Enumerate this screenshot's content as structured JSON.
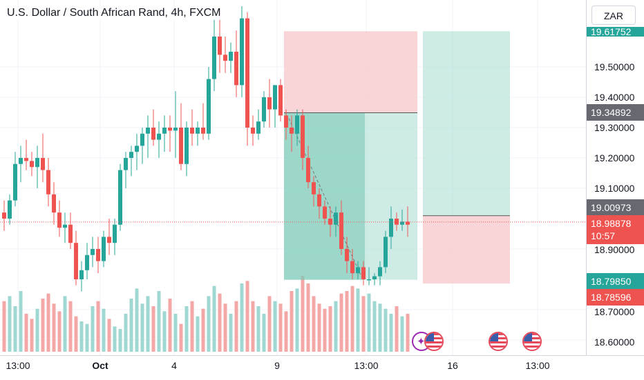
{
  "header": {
    "title": "U.S. Dollar / South African Rand, 4h, FXCM"
  },
  "currency_button": "ZAR",
  "price_axis": {
    "ticks": [
      "19.50000",
      "19.40000",
      "19.30000",
      "19.20000",
      "19.10000",
      "18.90000",
      "18.70000",
      "18.60000"
    ],
    "badges": {
      "top_partial": "19.61752",
      "entry_level": "19.34892",
      "position_level": "19.00973",
      "last_price": "18.98878",
      "countdown": "10:57",
      "green_level": "18.79850",
      "red_level": "18.78596"
    }
  },
  "time_axis": {
    "labels": [
      "13:00",
      "Oct",
      "4",
      "9",
      "13:00",
      "16",
      "13:00"
    ]
  },
  "colors": {
    "up": "#26a69a",
    "down": "#ef5350",
    "up_volume": "#9fd8d2",
    "down_volume": "#f3a7a6",
    "profit_zone": "#a6dccf",
    "loss_zone": "#f7c3c6",
    "dark_gray_badge": "#666970"
  },
  "icons": [
    "us-flag-icon",
    "us-flag-icon",
    "us-flag-icon",
    "rocket-flag-icon"
  ],
  "chart_data": {
    "type": "candlestick",
    "title": "U.S. Dollar / South African Rand, 4h, FXCM",
    "ylim": [
      18.55,
      19.75
    ],
    "y_ticks": [
      19.5,
      19.4,
      19.3,
      19.2,
      19.1,
      18.9,
      18.7,
      18.6
    ],
    "last_price": 18.98878,
    "ohlc": [
      [
        19.02,
        19.06,
        18.96,
        19.0
      ],
      [
        19.0,
        19.08,
        18.98,
        19.06
      ],
      [
        19.06,
        19.22,
        19.04,
        19.18
      ],
      [
        19.18,
        19.24,
        19.12,
        19.2
      ],
      [
        19.2,
        19.26,
        19.16,
        19.19
      ],
      [
        19.19,
        19.22,
        19.14,
        19.17
      ],
      [
        19.17,
        19.24,
        19.1,
        19.2
      ],
      [
        19.2,
        19.28,
        19.12,
        19.16
      ],
      [
        19.16,
        19.2,
        19.04,
        19.08
      ],
      [
        19.08,
        19.12,
        18.98,
        19.02
      ],
      [
        19.02,
        19.06,
        18.94,
        18.97
      ],
      [
        18.97,
        19.02,
        18.92,
        18.98
      ],
      [
        18.98,
        19.02,
        18.9,
        18.92
      ],
      [
        18.92,
        18.96,
        18.78,
        18.8
      ],
      [
        18.8,
        18.86,
        18.76,
        18.83
      ],
      [
        18.83,
        18.92,
        18.8,
        18.88
      ],
      [
        18.88,
        18.94,
        18.84,
        18.9
      ],
      [
        18.9,
        18.94,
        18.82,
        18.86
      ],
      [
        18.86,
        18.96,
        18.84,
        18.94
      ],
      [
        18.94,
        19.0,
        18.88,
        18.92
      ],
      [
        18.92,
        19.0,
        18.88,
        18.98
      ],
      [
        18.98,
        19.18,
        18.96,
        19.16
      ],
      [
        19.16,
        19.22,
        19.1,
        19.2
      ],
      [
        19.2,
        19.24,
        19.14,
        19.22
      ],
      [
        19.22,
        19.28,
        19.16,
        19.24
      ],
      [
        19.24,
        19.3,
        19.18,
        19.28
      ],
      [
        19.28,
        19.34,
        19.2,
        19.3
      ],
      [
        19.3,
        19.36,
        19.24,
        19.26
      ],
      [
        19.26,
        19.32,
        19.2,
        19.28
      ],
      [
        19.28,
        19.34,
        19.22,
        19.3
      ],
      [
        19.3,
        19.34,
        19.22,
        19.29
      ],
      [
        19.29,
        19.42,
        19.2,
        19.3
      ],
      [
        19.3,
        19.38,
        19.16,
        19.18
      ],
      [
        19.18,
        19.32,
        19.14,
        19.3
      ],
      [
        19.3,
        19.36,
        19.24,
        19.28
      ],
      [
        19.28,
        19.32,
        19.24,
        19.3
      ],
      [
        19.3,
        19.38,
        19.26,
        19.28
      ],
      [
        19.28,
        19.5,
        19.26,
        19.46
      ],
      [
        19.46,
        19.66,
        19.42,
        19.6
      ],
      [
        19.6,
        19.7,
        19.48,
        19.54
      ],
      [
        19.54,
        19.6,
        19.48,
        19.52
      ],
      [
        19.52,
        19.58,
        19.48,
        19.55
      ],
      [
        19.55,
        19.62,
        19.4,
        19.44
      ],
      [
        19.44,
        19.7,
        19.4,
        19.66
      ],
      [
        19.66,
        19.68,
        19.24,
        19.3
      ],
      [
        19.3,
        19.34,
        19.24,
        19.28
      ],
      [
        19.28,
        19.36,
        19.26,
        19.32
      ],
      [
        19.32,
        19.42,
        19.3,
        19.4
      ],
      [
        19.4,
        19.46,
        19.3,
        19.36
      ],
      [
        19.36,
        19.44,
        19.3,
        19.44
      ],
      [
        19.44,
        19.46,
        19.32,
        19.34
      ],
      [
        19.34,
        19.36,
        19.26,
        19.3
      ],
      [
        19.3,
        19.34,
        19.22,
        19.28
      ],
      [
        19.28,
        19.36,
        19.24,
        19.34
      ],
      [
        19.34,
        19.36,
        19.16,
        19.2
      ],
      [
        19.2,
        19.24,
        19.1,
        19.12
      ],
      [
        19.12,
        19.14,
        19.04,
        19.08
      ],
      [
        19.08,
        19.1,
        19.0,
        19.04
      ],
      [
        19.04,
        19.06,
        18.98,
        19.0
      ],
      [
        19.0,
        19.04,
        18.94,
        18.98
      ],
      [
        18.98,
        19.04,
        18.94,
        19.02
      ],
      [
        19.02,
        19.06,
        18.88,
        18.9
      ],
      [
        18.9,
        18.94,
        18.82,
        18.86
      ],
      [
        18.86,
        18.9,
        18.8,
        18.82
      ],
      [
        18.82,
        18.86,
        18.8,
        18.84
      ],
      [
        18.84,
        18.86,
        18.78,
        18.8
      ],
      [
        18.8,
        18.84,
        18.78,
        18.8
      ],
      [
        18.8,
        18.82,
        18.78,
        18.81
      ],
      [
        18.81,
        18.86,
        18.78,
        18.84
      ],
      [
        18.84,
        18.96,
        18.82,
        18.94
      ],
      [
        18.94,
        19.04,
        18.9,
        19.0
      ],
      [
        19.0,
        19.02,
        18.96,
        18.98
      ],
      [
        18.98,
        19.03,
        18.96,
        18.99
      ],
      [
        18.99,
        19.04,
        18.94,
        18.98
      ]
    ],
    "volume": [
      40,
      44,
      36,
      48,
      30,
      26,
      34,
      42,
      46,
      38,
      32,
      44,
      40,
      28,
      24,
      22,
      36,
      40,
      34,
      26,
      20,
      18,
      30,
      42,
      50,
      38,
      44,
      36,
      48,
      32,
      42,
      30,
      22,
      36,
      40,
      28,
      34,
      44,
      52,
      46,
      38,
      30,
      40,
      54,
      56,
      40,
      36,
      30,
      44,
      40,
      38,
      32,
      48,
      50,
      60,
      54,
      44,
      38,
      34,
      36,
      40,
      46,
      48,
      52,
      50,
      44,
      46,
      40,
      38,
      34,
      30,
      36,
      28,
      30
    ],
    "position": {
      "entry": 19.34892,
      "profit_zone_bottom": 18.7985,
      "loss_zone_top": 19.61752,
      "second_entry": 19.00973,
      "second_stop_bottom": 18.78596
    }
  }
}
